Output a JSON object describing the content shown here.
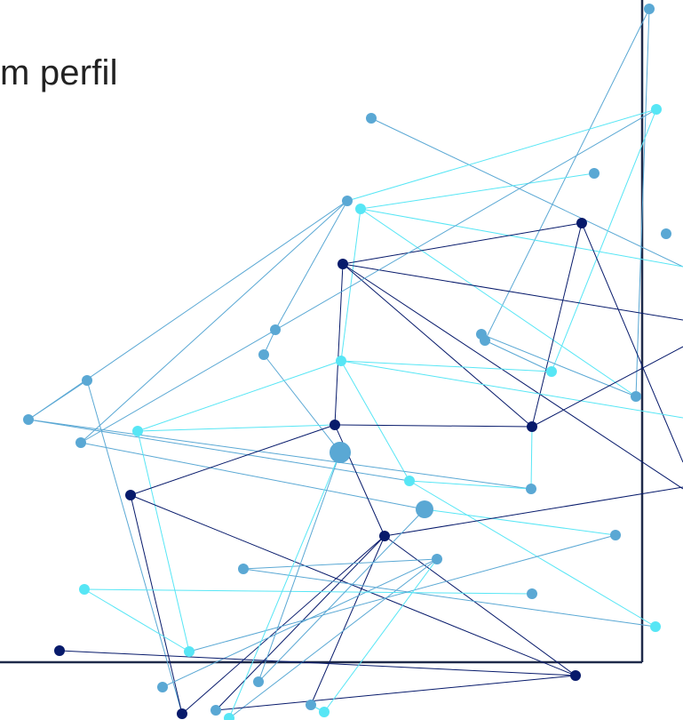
{
  "slide": {
    "title_fragment": "m perfil"
  },
  "colors": {
    "background": "#ffffff",
    "frame": "#1f2a4a",
    "navy": "#071a6b",
    "steel_blue": "#5aa8d4",
    "cyan": "#57e6f5",
    "title_text": "#222222"
  },
  "decoration": {
    "name": "network-graphic"
  }
}
